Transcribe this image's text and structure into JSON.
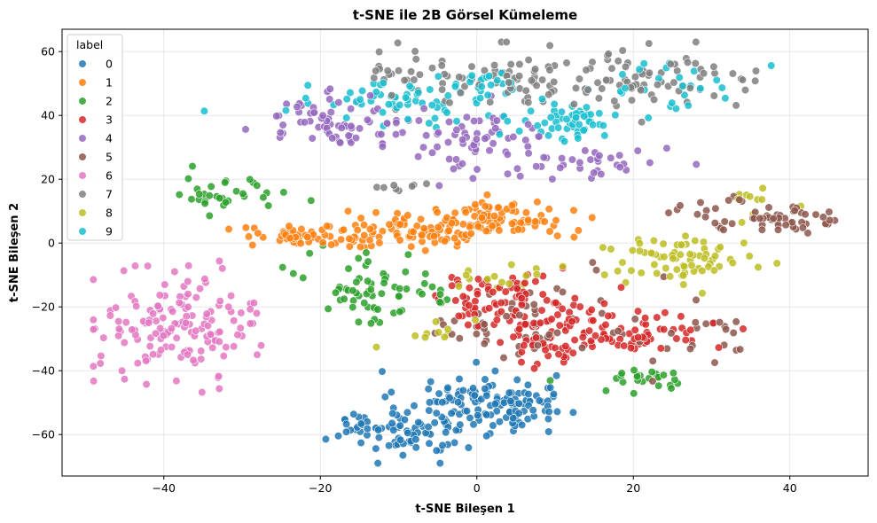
{
  "chart_data": {
    "type": "scatter",
    "title": "t-SNE ile 2B Görsel Kümeleme",
    "xlabel": "t-SNE Bileşen 1",
    "ylabel": "t-SNE Bileşen 2",
    "xlim": [
      -53,
      50
    ],
    "ylim": [
      -73,
      67
    ],
    "xticks": [
      -40,
      -20,
      0,
      20,
      40
    ],
    "yticks": [
      -60,
      -40,
      -20,
      0,
      20,
      40,
      60
    ],
    "grid": true,
    "legend": {
      "title": "label",
      "placement": "top-left"
    },
    "series": [
      {
        "name": "0",
        "color": "#1f77b4",
        "clusters": [
          {
            "cx": 0,
            "cy": -50,
            "sx": 5,
            "sy": 5,
            "n": 110
          },
          {
            "cx": -8,
            "cy": -60,
            "sx": 4,
            "sy": 3.5,
            "n": 60
          },
          {
            "cx": -14,
            "cy": -56,
            "sx": 2.5,
            "sy": 2,
            "n": 20
          },
          {
            "cx": 7,
            "cy": -50,
            "sx": 3,
            "sy": 3,
            "n": 25
          }
        ]
      },
      {
        "name": "1",
        "color": "#ff7f0e",
        "clusters": [
          {
            "cx": 2,
            "cy": 7,
            "sx": 5,
            "sy": 3,
            "n": 110
          },
          {
            "cx": -10,
            "cy": 3,
            "sx": 6,
            "sy": 2.5,
            "n": 80
          },
          {
            "cx": -24,
            "cy": 2,
            "sx": 3,
            "sy": 1.5,
            "n": 35
          }
        ]
      },
      {
        "name": "2",
        "color": "#2ca02c",
        "clusters": [
          {
            "cx": -14,
            "cy": -14,
            "sx": 4,
            "sy": 6,
            "n": 55
          },
          {
            "cx": -30,
            "cy": 16,
            "sx": 3,
            "sy": 3,
            "n": 20
          },
          {
            "cx": -35,
            "cy": 15,
            "sx": 2,
            "sy": 3,
            "n": 12
          },
          {
            "cx": 21,
            "cy": -43,
            "sx": 4,
            "sy": 2,
            "n": 25
          },
          {
            "cx": -6,
            "cy": -15,
            "sx": 2,
            "sy": 4,
            "n": 10
          }
        ]
      },
      {
        "name": "3",
        "color": "#d62728",
        "clusters": [
          {
            "cx": 4,
            "cy": -18,
            "sx": 5,
            "sy": 4,
            "n": 90
          },
          {
            "cx": 17,
            "cy": -28,
            "sx": 6,
            "sy": 4,
            "n": 90
          },
          {
            "cx": 9,
            "cy": -32,
            "sx": 3,
            "sy": 4,
            "n": 20
          }
        ]
      },
      {
        "name": "4",
        "color": "#9467bd",
        "clusters": [
          {
            "cx": -18,
            "cy": 38,
            "sx": 5,
            "sy": 4,
            "n": 70
          },
          {
            "cx": 0,
            "cy": 32,
            "sx": 5,
            "sy": 5,
            "n": 60
          },
          {
            "cx": 15,
            "cy": 25,
            "sx": 5,
            "sy": 2.5,
            "n": 35
          }
        ]
      },
      {
        "name": "5",
        "color": "#8c564b",
        "clusters": [
          {
            "cx": 39,
            "cy": 7,
            "sx": 4,
            "sy": 2.5,
            "n": 45
          },
          {
            "cx": 30,
            "cy": 10,
            "sx": 3,
            "sy": 2,
            "n": 15
          },
          {
            "cx": 10,
            "cy": -25,
            "sx": 7,
            "sy": 8,
            "n": 45
          },
          {
            "cx": 30,
            "cy": -30,
            "sx": 3,
            "sy": 5,
            "n": 15
          },
          {
            "cx": 0,
            "cy": -28,
            "sx": 3,
            "sy": 3,
            "n": 15
          }
        ]
      },
      {
        "name": "6",
        "color": "#e377c2",
        "clusters": [
          {
            "cx": -38,
            "cy": -25,
            "sx": 5,
            "sy": 8,
            "n": 150
          }
        ]
      },
      {
        "name": "7",
        "color": "#7f7f7f",
        "clusters": [
          {
            "cx": 5,
            "cy": 52,
            "sx": 9,
            "sy": 5,
            "n": 90
          },
          {
            "cx": 24,
            "cy": 50,
            "sx": 6,
            "sy": 4,
            "n": 60
          },
          {
            "cx": -12,
            "cy": 52,
            "sx": 3,
            "sy": 2,
            "n": 10
          },
          {
            "cx": -10,
            "cy": 18,
            "sx": 2,
            "sy": 1,
            "n": 8
          }
        ]
      },
      {
        "name": "8",
        "color": "#bcbd22",
        "clusters": [
          {
            "cx": 26,
            "cy": -5,
            "sx": 5,
            "sy": 3.5,
            "n": 70
          },
          {
            "cx": 5,
            "cy": -10,
            "sx": 4,
            "sy": 2,
            "n": 15
          },
          {
            "cx": -5,
            "cy": -27,
            "sx": 2,
            "sy": 2,
            "n": 10
          },
          {
            "cx": 36,
            "cy": 14,
            "sx": 2,
            "sy": 3,
            "n": 10
          }
        ]
      },
      {
        "name": "9",
        "color": "#17becf",
        "clusters": [
          {
            "cx": -10,
            "cy": 44,
            "sx": 6,
            "sy": 3,
            "n": 60
          },
          {
            "cx": 12,
            "cy": 38,
            "sx": 4,
            "sy": 3,
            "n": 55
          },
          {
            "cx": 25,
            "cy": 50,
            "sx": 4,
            "sy": 4,
            "n": 25
          },
          {
            "cx": 1,
            "cy": 50,
            "sx": 3,
            "sy": 2,
            "n": 20
          }
        ]
      }
    ]
  }
}
